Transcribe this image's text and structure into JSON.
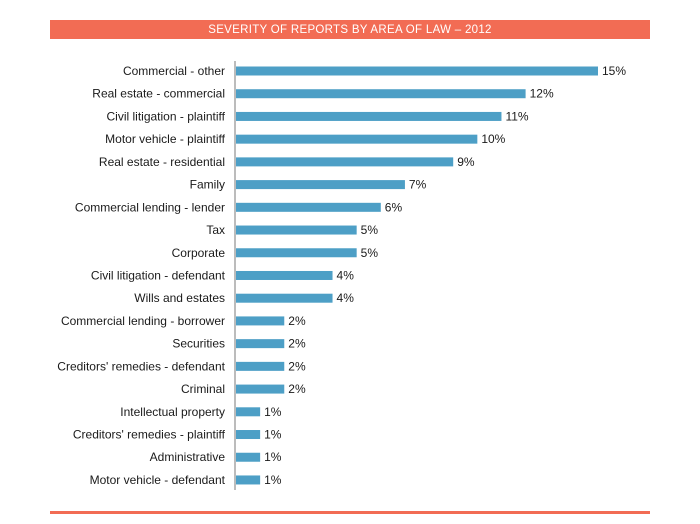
{
  "colors": {
    "accent": "#f26c54",
    "bar": "#4d9fc6",
    "axis": "#7a7a7a"
  },
  "chart_data": {
    "type": "bar",
    "orientation": "horizontal",
    "title": "SEVERITY OF REPORTS BY AREA OF LAW – 2012",
    "categories": [
      "Commercial - other",
      "Real estate - commercial",
      "Civil litigation - plaintiff",
      "Motor vehicle - plaintiff",
      "Real estate - residential",
      "Family",
      "Commercial lending - lender",
      "Tax",
      "Corporate",
      "Civil litigation - defendant",
      "Wills and estates",
      "Commercial lending - borrower",
      "Securities",
      "Creditors' remedies - defendant",
      "Criminal",
      "Intellectual property",
      "Creditors' remedies - plaintiff",
      "Administrative",
      "Motor vehicle - defendant"
    ],
    "values": [
      15,
      12,
      11,
      10,
      9,
      7,
      6,
      5,
      5,
      4,
      4,
      2,
      2,
      2,
      2,
      1,
      1,
      1,
      1
    ],
    "value_labels": [
      "15%",
      "12%",
      "11%",
      "10%",
      "9%",
      "7%",
      "6%",
      "5%",
      "5%",
      "4%",
      "4%",
      "2%",
      "2%",
      "2%",
      "2%",
      "1%",
      "1%",
      "1%",
      "1%"
    ],
    "value_unit": "%",
    "xlim": [
      0,
      15
    ],
    "grid": false,
    "legend": "none"
  }
}
